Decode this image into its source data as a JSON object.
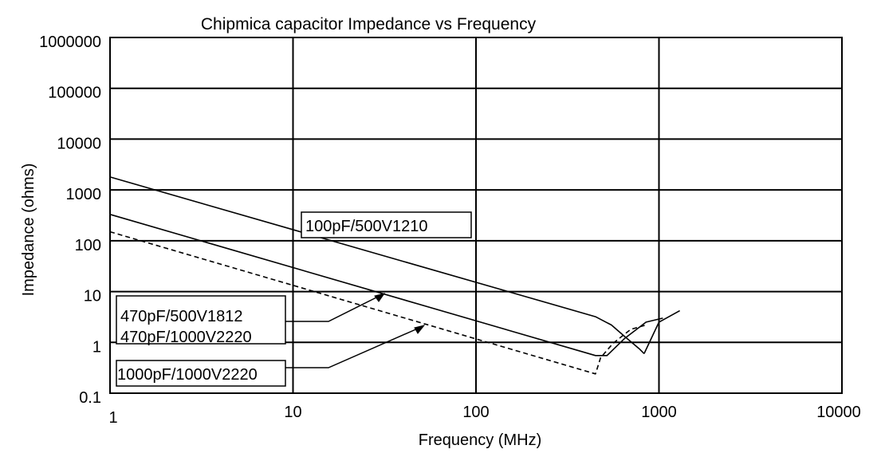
{
  "chart_data": {
    "type": "line",
    "title": "Chipmica capacitor Impedance vs Frequency",
    "xlabel": "Frequency (MHz)",
    "ylabel": "Impedance (ohms)",
    "x_scale": "log",
    "y_scale": "log",
    "xlim": [
      1,
      10000
    ],
    "ylim": [
      0.1,
      1000000
    ],
    "x_ticks": [
      "1",
      "10",
      "100",
      "1000",
      "10000"
    ],
    "y_ticks": [
      "0.1",
      "1",
      "10",
      "100",
      "1000",
      "10000",
      "100000",
      "1000000"
    ],
    "grid": true,
    "legend": "none",
    "series": [
      {
        "name": "100pF/500V1210",
        "style": "solid",
        "x": [
          1,
          450,
          550,
          650,
          780,
          830
        ],
        "y": [
          1800,
          3.2,
          2.2,
          1.3,
          0.75,
          0.6
        ]
      },
      {
        "name": "470pF/500V1812",
        "style": "solid",
        "x": [
          1,
          450,
          520,
          650,
          850,
          1050
        ],
        "y": [
          330,
          0.55,
          0.55,
          1.2,
          2.5,
          3.0
        ]
      },
      {
        "name": "1000pF/1000V2220",
        "style": "dashed",
        "x": [
          1,
          450,
          480,
          560,
          700,
          850
        ],
        "y": [
          150,
          0.24,
          0.5,
          0.95,
          1.8,
          2.2
        ]
      },
      {
        "name": "470pF/1000V2220",
        "style": "solid",
        "x": [
          830,
          1000,
          1300
        ],
        "y": [
          0.6,
          2.5,
          4.2
        ]
      }
    ],
    "annotations": [
      {
        "text": "100pF/500V1210"
      },
      {
        "text": "470pF/500V1812"
      },
      {
        "text": "470pF/1000V2220"
      },
      {
        "text": "1000pF/1000V2220"
      }
    ]
  }
}
